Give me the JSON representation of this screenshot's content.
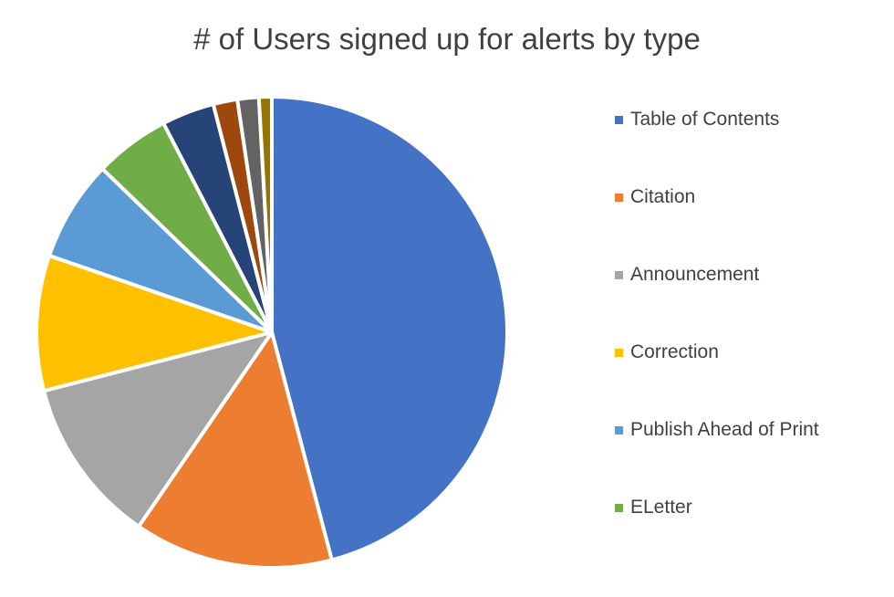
{
  "chart_data": {
    "type": "pie",
    "title": "# of Users signed up for alerts by type",
    "start_angle_deg": 0,
    "direction": "clockwise",
    "legend_position": "right",
    "slices": [
      {
        "label": "Table of Contents",
        "value": 47.0,
        "color": "#4472C4",
        "in_legend": true
      },
      {
        "label": "Citation",
        "value": 14.0,
        "color": "#ED7D31",
        "in_legend": true
      },
      {
        "label": "Announcement",
        "value": 11.7,
        "color": "#A5A5A5",
        "in_legend": true
      },
      {
        "label": "Correction",
        "value": 9.5,
        "color": "#FFC000",
        "in_legend": true
      },
      {
        "label": "Publish Ahead of Print",
        "value": 7.1,
        "color": "#5B9BD5",
        "in_legend": true
      },
      {
        "label": "ELetter",
        "value": 5.3,
        "color": "#70AD47",
        "in_legend": true
      },
      {
        "label": "",
        "value": 3.7,
        "color": "#264478",
        "in_legend": false
      },
      {
        "label": "",
        "value": 1.7,
        "color": "#9E480E",
        "in_legend": false
      },
      {
        "label": "",
        "value": 1.5,
        "color": "#636363",
        "in_legend": false
      },
      {
        "label": "",
        "value": 0.9,
        "color": "#997300",
        "in_legend": false
      }
    ]
  }
}
